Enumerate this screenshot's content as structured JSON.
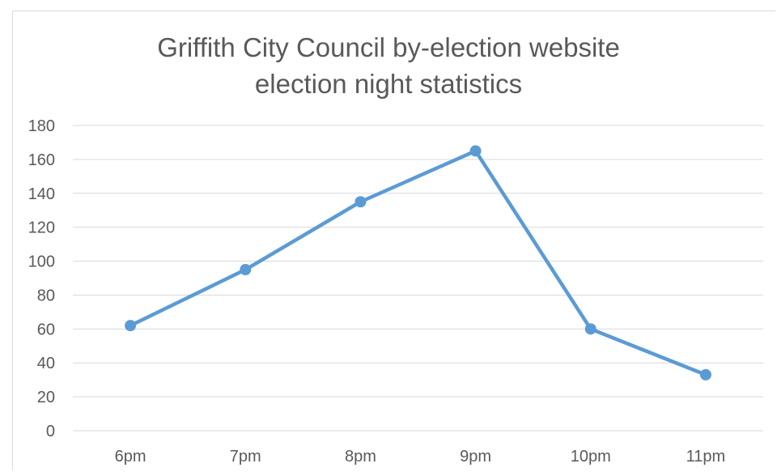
{
  "chart_data": {
    "type": "line",
    "title_line1": "Griffith City Council by-election website",
    "title_line2": "election night statistics",
    "categories": [
      "6pm",
      "7pm",
      "8pm",
      "9pm",
      "10pm",
      "11pm"
    ],
    "series": [
      {
        "values": [
          62,
          95,
          135,
          165,
          60,
          33
        ]
      }
    ],
    "ylim": [
      0,
      180
    ],
    "yticks": [
      "0",
      "20",
      "40",
      "60",
      "80",
      "100",
      "120",
      "140",
      "160",
      "180"
    ],
    "grid": true,
    "legend": "none",
    "colors": {
      "line": "#5b9bd5",
      "grid": "#d9d9d9",
      "text": "#595959"
    }
  }
}
